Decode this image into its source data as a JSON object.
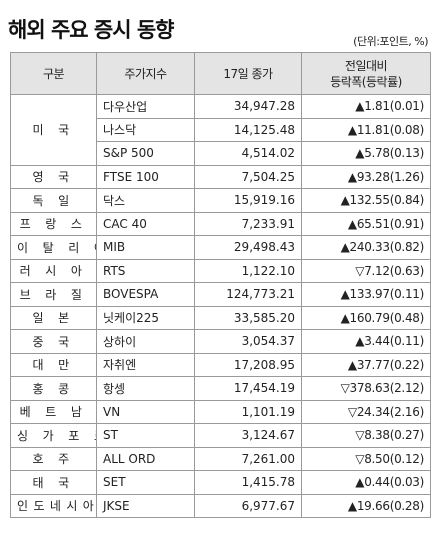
{
  "title": "해외 주요 증시 동향",
  "unit": "(단위:포인트, %)",
  "headers": {
    "region": "구분",
    "index": "주가지수",
    "close": "17일 종가",
    "change_line1": "전일대비",
    "change_line2": "등락폭(등락률)"
  },
  "rows": [
    {
      "country": "미 국",
      "span": 3,
      "index": "다우산업",
      "close": "34,947.28",
      "change": "▲1.81(0.01)"
    },
    {
      "index": "나스닥",
      "close": "14,125.48",
      "change": "▲11.81(0.08)"
    },
    {
      "index": "S&P 500",
      "close": "4,514.02",
      "change": "▲5.78(0.13)"
    },
    {
      "country": "영 국",
      "index": "FTSE 100",
      "close": "7,504.25",
      "change": "▲93.28(1.26)"
    },
    {
      "country": "독 일",
      "index": "닥스",
      "close": "15,919.16",
      "change": "▲132.55(0.84)"
    },
    {
      "country": "프 랑 스",
      "index": "CAC 40",
      "close": "7,233.91",
      "change": "▲65.51(0.91)"
    },
    {
      "country": "이 탈 리 아",
      "index": "MIB",
      "close": "29,498.43",
      "change": "▲240.33(0.82)"
    },
    {
      "country": "러 시 아",
      "index": "RTS",
      "close": "1,122.10",
      "change": "▽7.12(0.63)"
    },
    {
      "country": "브 라 질",
      "index": "BOVESPA",
      "close": "124,773.21",
      "change": "▲133.97(0.11)"
    },
    {
      "country": "일 본",
      "index": "닛케이225",
      "close": "33,585.20",
      "change": "▲160.79(0.48)"
    },
    {
      "country": "중 국",
      "index": "상하이",
      "close": "3,054.37",
      "change": "▲3.44(0.11)"
    },
    {
      "country": "대 만",
      "index": "자취엔",
      "close": "17,208.95",
      "change": "▲37.77(0.22)"
    },
    {
      "country": "홍 콩",
      "index": "항셍",
      "close": "17,454.19",
      "change": "▽378.63(2.12)"
    },
    {
      "country": "베 트 남",
      "index": "VN",
      "close": "1,101.19",
      "change": "▽24.34(2.16)"
    },
    {
      "country": "싱 가 포 르",
      "index": "ST",
      "close": "3,124.67",
      "change": "▽8.38(0.27)"
    },
    {
      "country": "호 주",
      "index": "ALL ORD",
      "close": "7,261.00",
      "change": "▽8.50(0.12)"
    },
    {
      "country": "태 국",
      "index": "SET",
      "close": "1,415.78",
      "change": "▲0.44(0.03)"
    },
    {
      "country": "인도네시아",
      "index": "JKSE",
      "close": "6,977.67",
      "change": "▲19.66(0.28)"
    }
  ]
}
